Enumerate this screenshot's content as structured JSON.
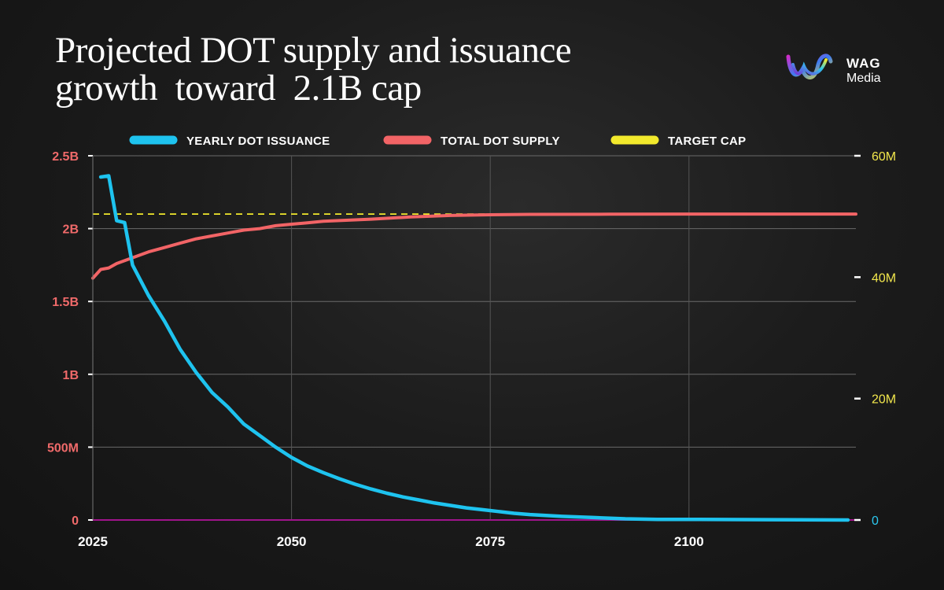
{
  "title": {
    "line1": "Projected DOT supply and issuance",
    "line2": "growth  toward  2.1B cap"
  },
  "logo": {
    "brand": "WAG",
    "sub": "Media",
    "icon": "wag-logo-icon"
  },
  "colors": {
    "issuance": "#1ec3ef",
    "supply": "#f26466",
    "cap": "#f2e92c",
    "baseline": "#a0148c",
    "left_axis": "#f06a6a",
    "right_axis": "#f1e64c"
  },
  "chart_data": {
    "type": "line",
    "legend": [
      "YEARLY DOT ISSUANCE",
      "TOTAL DOT SUPPLY",
      "TARGET CAP"
    ],
    "x_ticks": [
      {
        "value": 2025,
        "label": "2025"
      },
      {
        "value": 2050,
        "label": "2050"
      },
      {
        "value": 2075,
        "label": "2075"
      },
      {
        "value": 2100,
        "label": "2100"
      }
    ],
    "xlim": [
      2025,
      2121
    ],
    "left_axis": {
      "range": [
        0,
        2500000000
      ],
      "ticks": [
        {
          "value": 0,
          "label": "0"
        },
        {
          "value": 500000000,
          "label": "500M"
        },
        {
          "value": 1000000000,
          "label": "1B"
        },
        {
          "value": 1500000000,
          "label": "1.5B"
        },
        {
          "value": 2000000000,
          "label": "2B"
        },
        {
          "value": 2500000000,
          "label": "2.5B"
        }
      ]
    },
    "right_axis": {
      "range": [
        0,
        60000000
      ],
      "ticks": [
        {
          "value": 0,
          "label": "0"
        },
        {
          "value": 20000000,
          "label": "20M"
        },
        {
          "value": 40000000,
          "label": "40M"
        },
        {
          "value": 60000000,
          "label": "60M"
        }
      ]
    },
    "series": [
      {
        "name": "YEARLY DOT ISSUANCE",
        "axis": "right",
        "x": [
          2026,
          2027,
          2028,
          2029,
          2030,
          2032,
          2034,
          2036,
          2038,
          2040,
          2042,
          2044,
          2046,
          2048,
          2050,
          2052,
          2054,
          2056,
          2058,
          2060,
          2062,
          2064,
          2066,
          2068,
          2070,
          2072,
          2074,
          2076,
          2078,
          2080,
          2084,
          2088,
          2092,
          2096,
          2100,
          2110,
          2120
        ],
        "values": [
          56.5,
          56.7,
          49.3,
          49.0,
          42.0,
          37.0,
          32.8,
          28.1,
          24.3,
          21.0,
          18.6,
          15.8,
          13.9,
          12.0,
          10.3,
          8.9,
          7.8,
          6.8,
          5.9,
          5.1,
          4.4,
          3.8,
          3.3,
          2.8,
          2.4,
          2.0,
          1.7,
          1.4,
          1.1,
          0.9,
          0.6,
          0.4,
          0.2,
          0.1,
          0.1,
          0.05,
          0.0
        ],
        "unit": "millions"
      },
      {
        "name": "TOTAL DOT SUPPLY",
        "axis": "left",
        "x": [
          2025,
          2026,
          2027,
          2028,
          2030,
          2032,
          2034,
          2036,
          2038,
          2040,
          2042,
          2044,
          2046,
          2048,
          2050,
          2052,
          2054,
          2056,
          2058,
          2060,
          2065,
          2070,
          2075,
          2080,
          2090,
          2100,
          2110,
          2121
        ],
        "values": [
          1.66,
          1.72,
          1.73,
          1.76,
          1.8,
          1.84,
          1.87,
          1.9,
          1.93,
          1.95,
          1.97,
          1.99,
          2.0,
          2.02,
          2.03,
          2.04,
          2.05,
          2.055,
          2.06,
          2.065,
          2.08,
          2.09,
          2.095,
          2.098,
          2.099,
          2.1,
          2.1,
          2.1
        ],
        "unit": "billions"
      },
      {
        "name": "TARGET CAP",
        "axis": "left",
        "x": [
          2025,
          2121
        ],
        "values": [
          2.1,
          2.1
        ],
        "unit": "billions"
      }
    ]
  }
}
